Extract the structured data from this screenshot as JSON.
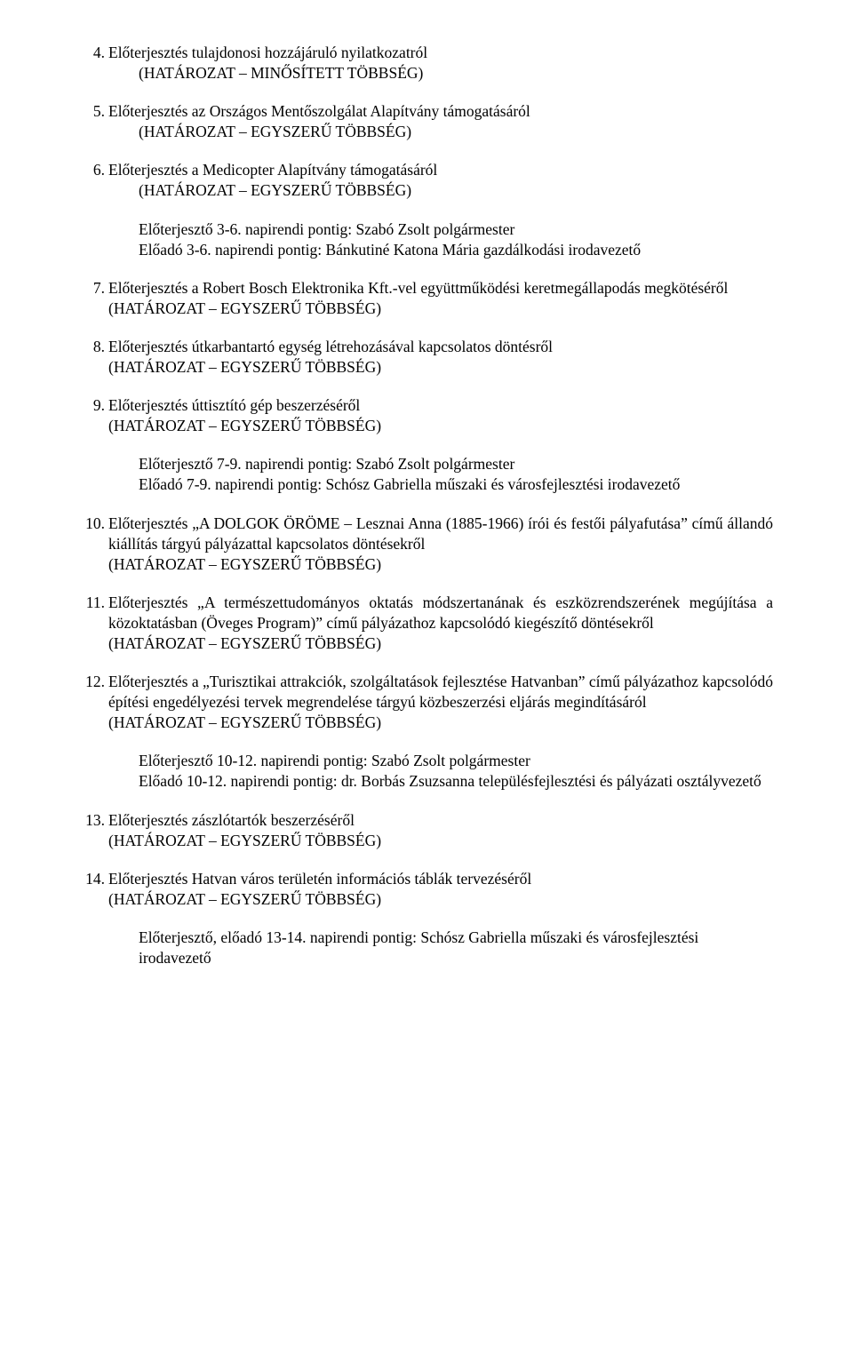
{
  "items": [
    {
      "num": "4.",
      "title": "Előterjesztés tulajdonosi hozzájáruló nyilatkozatról",
      "note": "(HATÁROZAT – MINŐSÍTETT TÖBBSÉG)"
    },
    {
      "num": "5.",
      "title": "Előterjesztés az Országos Mentőszolgálat Alapítvány támogatásáról",
      "note": "(HATÁROZAT – EGYSZERŰ TÖBBSÉG)"
    },
    {
      "num": "6.",
      "title": "Előterjesztés a Medicopter Alapítvány támogatásáról",
      "note": "(HATÁROZAT – EGYSZERŰ TÖBBSÉG)",
      "sub": [
        "Előterjesztő 3-6. napirendi pontig: Szabó Zsolt polgármester",
        "Előadó 3-6. napirendi pontig: Bánkutiné Katona Mária gazdálkodási irodavezető"
      ]
    },
    {
      "num": "7.",
      "title": "Előterjesztés a Robert Bosch Elektronika Kft.-vel együttműködési keretmegállapodás megkötéséről",
      "note": "(HATÁROZAT – EGYSZERŰ TÖBBSÉG)"
    },
    {
      "num": "8.",
      "title": "Előterjesztés útkarbantartó egység létrehozásával kapcsolatos döntésről",
      "note": "(HATÁROZAT – EGYSZERŰ TÖBBSÉG)"
    },
    {
      "num": "9.",
      "title": "Előterjesztés úttisztító gép beszerzéséről",
      "note": "(HATÁROZAT – EGYSZERŰ TÖBBSÉG)",
      "sub": [
        "Előterjesztő 7-9. napirendi pontig: Szabó Zsolt polgármester",
        "Előadó 7-9. napirendi pontig: Schósz Gabriella műszaki és városfejlesztési irodavezető"
      ]
    },
    {
      "num": "10.",
      "title": "Előterjesztés „A DOLGOK ÖRÖME – Lesznai Anna (1885-1966) írói és festői pályafutása” című állandó kiállítás tárgyú pályázattal kapcsolatos döntésekről",
      "note": "(HATÁROZAT – EGYSZERŰ TÖBBSÉG)"
    },
    {
      "num": "11.",
      "title": "Előterjesztés „A természettudományos oktatás módszertanának és eszközrendszerének megújítása a közoktatásban (Öveges Program)” című pályázathoz kapcsolódó kiegészítő döntésekről",
      "note": "(HATÁROZAT – EGYSZERŰ TÖBBSÉG)"
    },
    {
      "num": "12.",
      "title": "Előterjesztés a „Turisztikai attrakciók, szolgáltatások fejlesztése Hatvanban” című pályázathoz kapcsolódó építési engedélyezési tervek megrendelése tárgyú közbeszerzési eljárás megindításáról",
      "note": "(HATÁROZAT – EGYSZERŰ TÖBBSÉG)",
      "sub": [
        "Előterjesztő 10-12. napirendi pontig: Szabó Zsolt polgármester",
        "Előadó 10-12. napirendi pontig: dr. Borbás Zsuzsanna településfejlesztési és pályázati osztályvezető"
      ]
    },
    {
      "num": "13.",
      "title": "Előterjesztés zászlótartók beszerzéséről",
      "note": "(HATÁROZAT – EGYSZERŰ TÖBBSÉG)"
    },
    {
      "num": "14.",
      "title": "Előterjesztés Hatvan város területén információs táblák tervezéséről",
      "note": "(HATÁROZAT – EGYSZERŰ TÖBBSÉG)",
      "sub": [
        "Előterjesztő, előadó 13-14. napirendi pontig: Schósz Gabriella műszaki és városfejlesztési irodavezető"
      ]
    }
  ]
}
